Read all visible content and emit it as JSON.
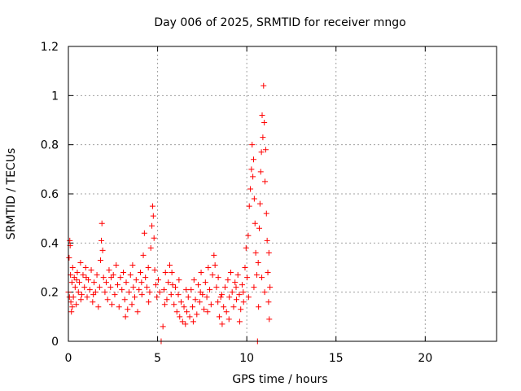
{
  "chart_data": {
    "type": "scatter",
    "title": "Day 006 of 2025, SRMTID for receiver mngo",
    "xlabel": "GPS time / hours",
    "ylabel": "SRMTID / TECUs",
    "xlim": [
      0,
      24
    ],
    "ylim": [
      0,
      1.2
    ],
    "xticks": [
      0,
      5,
      10,
      15,
      20
    ],
    "yticks": [
      0,
      0.2,
      0.4,
      0.6,
      0.8,
      1,
      1.2
    ],
    "xtick_labels": [
      "0",
      "5",
      "10",
      "15",
      "20"
    ],
    "ytick_labels": [
      "0",
      "0.2",
      "0.4",
      "0.6",
      "0.8",
      "1",
      "1.2"
    ],
    "grid": true,
    "marker": "+",
    "color": "#ff0000",
    "series": [
      {
        "name": "SRMTID",
        "points": [
          [
            0.0,
            0.2
          ],
          [
            0.04,
            0.34
          ],
          [
            0.08,
            0.41
          ],
          [
            0.1,
            0.39
          ],
          [
            0.12,
            0.27
          ],
          [
            0.14,
            0.16
          ],
          [
            0.17,
            0.12
          ],
          [
            0.2,
            0.24
          ],
          [
            0.24,
            0.3
          ],
          [
            0.28,
            0.18
          ],
          [
            0.33,
            0.26
          ],
          [
            0.38,
            0.22
          ],
          [
            0.44,
            0.15
          ],
          [
            0.5,
            0.28
          ],
          [
            0.56,
            0.2
          ],
          [
            0.62,
            0.24
          ],
          [
            0.68,
            0.32
          ],
          [
            0.75,
            0.19
          ],
          [
            0.82,
            0.27
          ],
          [
            0.9,
            0.22
          ],
          [
            0.97,
            0.3
          ],
          [
            1.05,
            0.18
          ],
          [
            1.12,
            0.25
          ],
          [
            1.2,
            0.21
          ],
          [
            1.28,
            0.29
          ],
          [
            1.36,
            0.16
          ],
          [
            1.44,
            0.24
          ],
          [
            1.52,
            0.2
          ],
          [
            1.6,
            0.27
          ],
          [
            1.68,
            0.14
          ],
          [
            1.75,
            0.22
          ],
          [
            1.8,
            0.33
          ],
          [
            1.85,
            0.41
          ],
          [
            1.88,
            0.48
          ],
          [
            1.92,
            0.37
          ],
          [
            1.97,
            0.26
          ],
          [
            2.05,
            0.2
          ],
          [
            2.12,
            0.24
          ],
          [
            2.2,
            0.17
          ],
          [
            2.28,
            0.29
          ],
          [
            2.36,
            0.22
          ],
          [
            2.44,
            0.15
          ],
          [
            2.52,
            0.27
          ],
          [
            2.6,
            0.19
          ],
          [
            2.68,
            0.31
          ],
          [
            2.76,
            0.23
          ],
          [
            2.84,
            0.14
          ],
          [
            2.92,
            0.26
          ],
          [
            3.0,
            0.21
          ],
          [
            3.08,
            0.28
          ],
          [
            3.16,
            0.17
          ],
          [
            3.24,
            0.24
          ],
          [
            3.32,
            0.13
          ],
          [
            3.4,
            0.2
          ],
          [
            3.48,
            0.27
          ],
          [
            3.56,
            0.15
          ],
          [
            3.64,
            0.22
          ],
          [
            3.72,
            0.18
          ],
          [
            3.8,
            0.25
          ],
          [
            3.88,
            0.12
          ],
          [
            3.96,
            0.21
          ],
          [
            4.04,
            0.28
          ],
          [
            4.12,
            0.19
          ],
          [
            4.2,
            0.35
          ],
          [
            4.26,
            0.44
          ],
          [
            4.32,
            0.26
          ],
          [
            4.4,
            0.22
          ],
          [
            4.48,
            0.3
          ],
          [
            4.56,
            0.2
          ],
          [
            4.62,
            0.38
          ],
          [
            4.68,
            0.47
          ],
          [
            4.72,
            0.55
          ],
          [
            4.76,
            0.51
          ],
          [
            4.8,
            0.42
          ],
          [
            4.84,
            0.29
          ],
          [
            4.9,
            0.23
          ],
          [
            4.96,
            0.18
          ],
          [
            5.04,
            0.25
          ],
          [
            5.12,
            0.2
          ],
          [
            5.2,
            0.0
          ],
          [
            5.3,
            0.06
          ],
          [
            5.36,
            0.21
          ],
          [
            5.44,
            0.28
          ],
          [
            5.52,
            0.17
          ],
          [
            5.6,
            0.24
          ],
          [
            5.68,
            0.31
          ],
          [
            5.76,
            0.19
          ],
          [
            5.84,
            0.23
          ],
          [
            5.92,
            0.15
          ],
          [
            6.0,
            0.22
          ],
          [
            6.08,
            0.12
          ],
          [
            6.16,
            0.19
          ],
          [
            6.24,
            0.1
          ],
          [
            6.32,
            0.16
          ],
          [
            6.4,
            0.08
          ],
          [
            6.48,
            0.14
          ],
          [
            6.56,
            0.07
          ],
          [
            6.64,
            0.12
          ],
          [
            6.72,
            0.18
          ],
          [
            6.8,
            0.1
          ],
          [
            6.88,
            0.21
          ],
          [
            6.96,
            0.14
          ],
          [
            7.04,
            0.25
          ],
          [
            7.12,
            0.17
          ],
          [
            7.2,
            0.11
          ],
          [
            7.28,
            0.23
          ],
          [
            7.36,
            0.16
          ],
          [
            7.44,
            0.28
          ],
          [
            7.52,
            0.19
          ],
          [
            7.6,
            0.13
          ],
          [
            7.68,
            0.24
          ],
          [
            7.76,
            0.18
          ],
          [
            7.84,
            0.3
          ],
          [
            7.92,
            0.21
          ],
          [
            8.0,
            0.15
          ],
          [
            8.08,
            0.27
          ],
          [
            8.16,
            0.35
          ],
          [
            8.22,
            0.31
          ],
          [
            8.3,
            0.22
          ],
          [
            8.38,
            0.16
          ],
          [
            8.46,
            0.1
          ],
          [
            8.54,
            0.18
          ],
          [
            8.62,
            0.07
          ],
          [
            8.7,
            0.14
          ],
          [
            8.78,
            0.22
          ],
          [
            8.86,
            0.12
          ],
          [
            8.94,
            0.25
          ],
          [
            9.02,
            0.18
          ],
          [
            9.1,
            0.28
          ],
          [
            9.18,
            0.2
          ],
          [
            9.26,
            0.14
          ],
          [
            9.34,
            0.24
          ],
          [
            9.42,
            0.17
          ],
          [
            9.5,
            0.27
          ],
          [
            9.58,
            0.19
          ],
          [
            9.66,
            0.13
          ],
          [
            9.74,
            0.23
          ],
          [
            9.82,
            0.16
          ],
          [
            9.9,
            0.3
          ],
          [
            9.96,
            0.38
          ],
          [
            10.02,
            0.26
          ],
          [
            10.08,
            0.43
          ],
          [
            10.14,
            0.55
          ],
          [
            10.2,
            0.62
          ],
          [
            10.26,
            0.7
          ],
          [
            10.3,
            0.8
          ],
          [
            10.34,
            0.67
          ],
          [
            10.38,
            0.74
          ],
          [
            10.42,
            0.58
          ],
          [
            10.46,
            0.48
          ],
          [
            10.5,
            0.36
          ],
          [
            10.56,
            0.27
          ],
          [
            10.6,
            0.0
          ],
          [
            10.64,
            0.32
          ],
          [
            10.7,
            0.46
          ],
          [
            10.74,
            0.56
          ],
          [
            10.78,
            0.69
          ],
          [
            10.82,
            0.77
          ],
          [
            10.86,
            0.92
          ],
          [
            10.9,
            0.83
          ],
          [
            10.94,
            1.04
          ],
          [
            10.98,
            0.89
          ],
          [
            11.02,
            0.65
          ],
          [
            11.06,
            0.78
          ],
          [
            11.1,
            0.52
          ],
          [
            11.14,
            0.41
          ],
          [
            11.18,
            0.28
          ],
          [
            11.22,
            0.16
          ],
          [
            11.26,
            0.09
          ],
          [
            11.3,
            0.22
          ],
          [
            0.06,
            0.18
          ],
          [
            0.22,
            0.14
          ],
          [
            0.46,
            0.25
          ],
          [
            0.7,
            0.17
          ],
          [
            1.0,
            0.26
          ],
          [
            1.4,
            0.19
          ],
          [
            2.4,
            0.26
          ],
          [
            3.2,
            0.1
          ],
          [
            3.6,
            0.31
          ],
          [
            4.1,
            0.24
          ],
          [
            4.5,
            0.16
          ],
          [
            5.4,
            0.15
          ],
          [
            5.8,
            0.28
          ],
          [
            6.2,
            0.25
          ],
          [
            6.6,
            0.21
          ],
          [
            7.0,
            0.08
          ],
          [
            7.4,
            0.2
          ],
          [
            7.8,
            0.12
          ],
          [
            8.4,
            0.26
          ],
          [
            8.6,
            0.19
          ],
          [
            9.0,
            0.09
          ],
          [
            9.4,
            0.22
          ],
          [
            9.6,
            0.08
          ],
          [
            9.8,
            0.2
          ],
          [
            10.1,
            0.18
          ],
          [
            10.4,
            0.22
          ],
          [
            10.66,
            0.14
          ],
          [
            10.84,
            0.26
          ],
          [
            11.0,
            0.2
          ],
          [
            11.24,
            0.36
          ]
        ]
      }
    ]
  }
}
